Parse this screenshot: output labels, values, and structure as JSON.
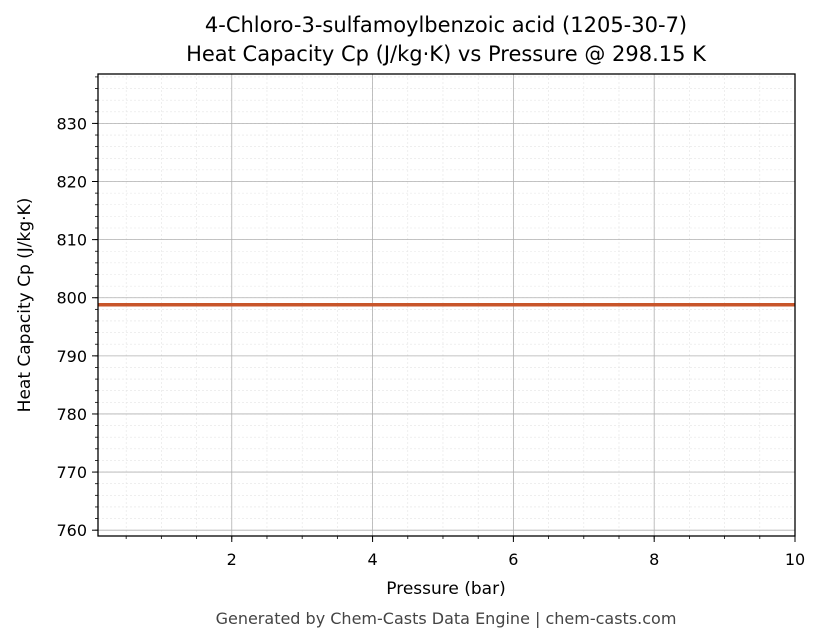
{
  "chart_data": {
    "type": "line",
    "title_line1": "4-Chloro-3-sulfamoylbenzoic acid (1205-30-7)",
    "title_line2": "Heat Capacity Cp (J/kg·K) vs Pressure @ 298.15 K",
    "xlabel": "Pressure (bar)",
    "ylabel": "Heat Capacity Cp (J/kg·K)",
    "xlim": [
      0.1,
      10
    ],
    "ylim": [
      759,
      838.5
    ],
    "x_ticks": [
      2,
      4,
      6,
      8,
      10
    ],
    "y_ticks": [
      760,
      770,
      780,
      790,
      800,
      810,
      820,
      830
    ],
    "x_minor_step": 0.5,
    "y_minor_step": 2,
    "grid": true,
    "series": [
      {
        "color": "#c8552a",
        "x": [
          0.1,
          10
        ],
        "y": [
          798.8,
          798.8
        ]
      }
    ]
  },
  "footer": "Generated by Chem-Casts Data Engine | chem-casts.com"
}
